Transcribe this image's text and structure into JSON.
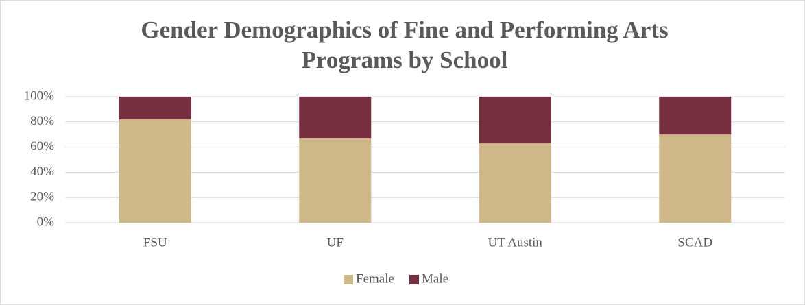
{
  "chart_data": {
    "type": "stacked_bar",
    "title": "Gender Demographics of Fine and Performing Arts Programs by School",
    "categories": [
      "FSU",
      "UF",
      "UT Austin",
      "SCAD"
    ],
    "series": [
      {
        "name": "Female",
        "color": "#cfb887",
        "values": [
          82,
          67,
          63,
          70
        ]
      },
      {
        "name": "Male",
        "color": "#782f40",
        "values": [
          18,
          33,
          37,
          30
        ]
      }
    ],
    "ylim": [
      0,
      100
    ],
    "yticks": [
      {
        "value": 0,
        "label": "0%"
      },
      {
        "value": 20,
        "label": "20%"
      },
      {
        "value": 40,
        "label": "40%"
      },
      {
        "value": 60,
        "label": "60%"
      },
      {
        "value": 80,
        "label": "80%"
      },
      {
        "value": 100,
        "label": "100%"
      }
    ],
    "grid": true,
    "legend": "bottom"
  }
}
